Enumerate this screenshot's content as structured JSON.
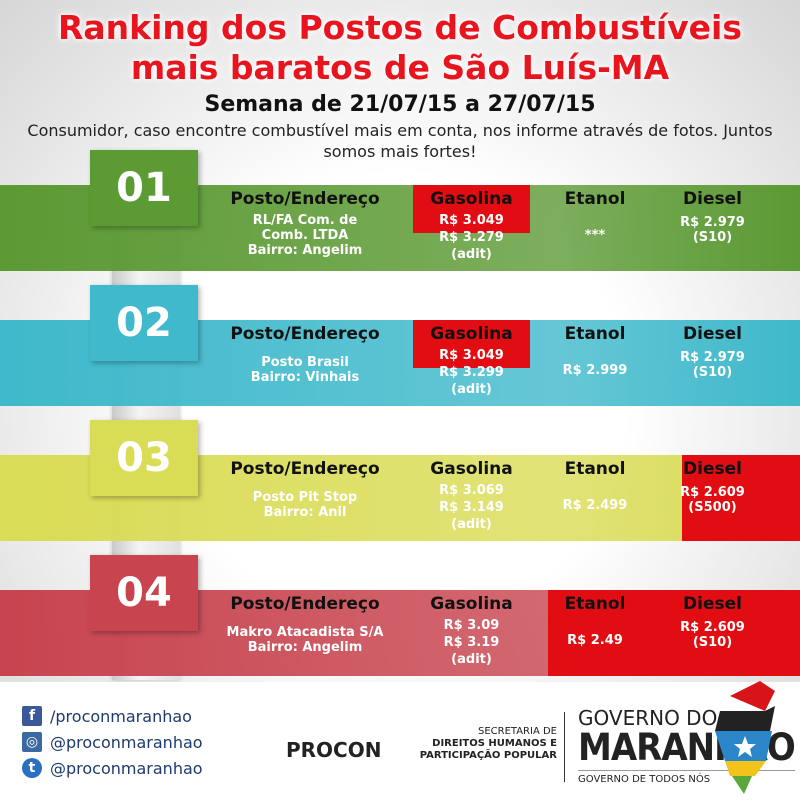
{
  "title_line1": "Ranking dos Postos de Combustíveis",
  "title_line2": "mais baratos de São Luís-MA",
  "subtitle": "Semana de 21/07/15 a 27/07/15",
  "note": "Consumidor, caso encontre combustível mais em conta, nos informe através de fotos. Juntos somos mais fortes!",
  "headers": {
    "posto": "Posto/Endereço",
    "gasolina": "Gasolina",
    "etanol": "Etanol",
    "diesel": "Diesel"
  },
  "rows": [
    {
      "rank": "01",
      "color": "#5c9a34",
      "posto": [
        "RL/FA Com. de",
        "Comb. LTDA",
        "Bairro: Angelim"
      ],
      "gasolina": [
        "R$ 3.049",
        "R$ 3.279",
        "(adit)"
      ],
      "etanol": [
        "***"
      ],
      "diesel": [
        "R$ 2.979",
        "(S10)"
      ]
    },
    {
      "rank": "02",
      "color": "#3fb9cb",
      "posto": [
        "Posto Brasil",
        "Bairro: Vinhais"
      ],
      "gasolina": [
        "R$ 3.049",
        "R$ 3.299",
        "(adit)"
      ],
      "etanol": [
        "R$ 2.999"
      ],
      "diesel": [
        "R$ 2.979",
        "(S10)"
      ]
    },
    {
      "rank": "03",
      "color": "#d9dc55",
      "posto": [
        "Posto Pit Stop",
        "Bairro: Anil"
      ],
      "gasolina": [
        "R$ 3.069",
        "R$ 3.149",
        "(adit)"
      ],
      "etanol": [
        "R$ 2.499"
      ],
      "diesel": [
        "R$ 2.609",
        "(S500)"
      ]
    },
    {
      "rank": "04",
      "color": "#c8444f",
      "posto": [
        "Makro Atacadista S/A",
        "Bairro: Angelim"
      ],
      "gasolina": [
        "R$ 3.09",
        "R$ 3.19",
        "(adit)"
      ],
      "etanol": [
        "R$ 2.49"
      ],
      "diesel": [
        "R$ 2.609",
        "(S10)"
      ]
    }
  ],
  "footer": {
    "facebook": "/proconmaranhao",
    "instagram": "@proconmaranhao",
    "twitter": "@proconmaranhao",
    "procon": "PROCON",
    "secretaria": [
      "SECRETARIA DE",
      "DIREITOS HUMANOS E",
      "PARTICIPAÇÃO POPULAR"
    ],
    "gov1": "GOVERNO DO",
    "gov2": "MARANHÃO",
    "gov3": "GOVERNO DE TODOS NÓS"
  }
}
